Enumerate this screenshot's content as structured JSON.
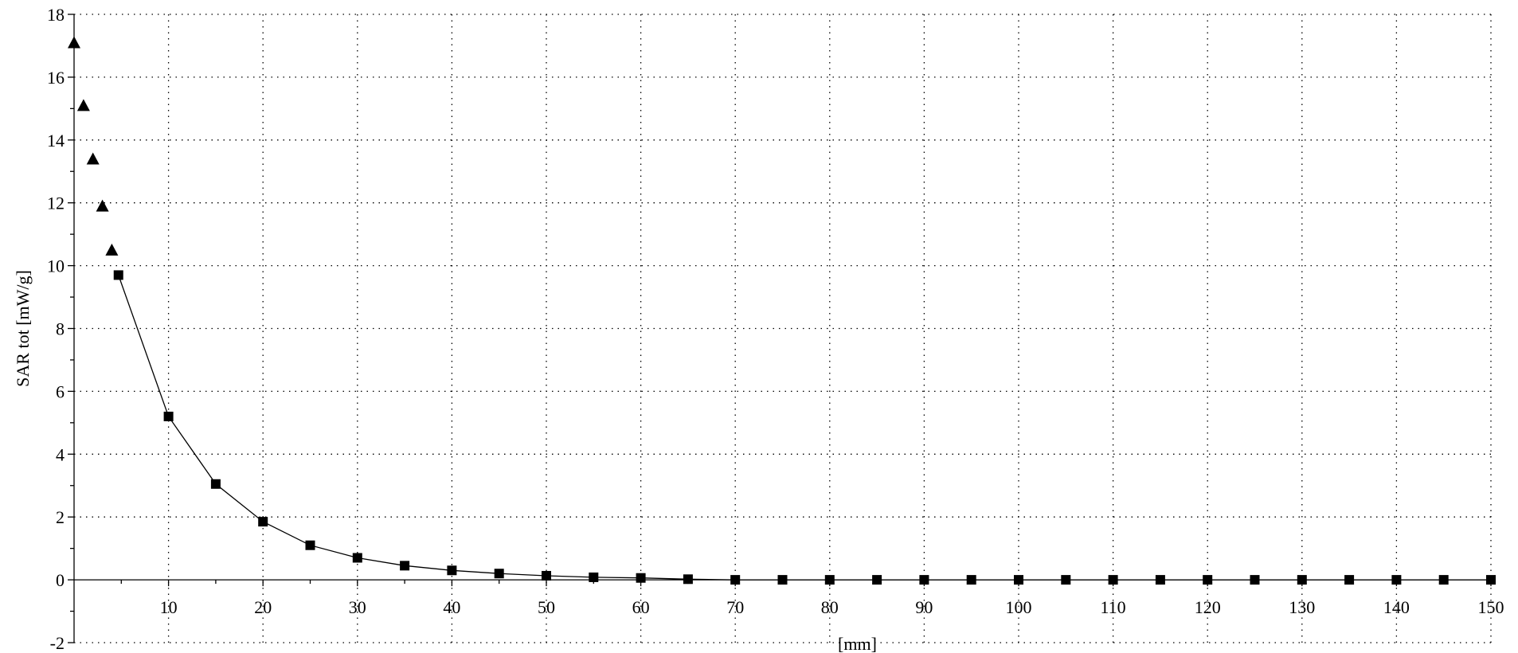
{
  "chart_data": {
    "type": "scatter",
    "xlabel": "[mm]",
    "ylabel": "SAR tot [mW/g]",
    "xlim": [
      0,
      150
    ],
    "ylim": [
      -2,
      18
    ],
    "x_ticks": [
      10,
      20,
      30,
      40,
      50,
      60,
      70,
      80,
      90,
      100,
      110,
      120,
      130,
      140,
      150
    ],
    "y_ticks": [
      -2,
      0,
      2,
      4,
      6,
      8,
      10,
      12,
      14,
      16,
      18
    ],
    "grid": true,
    "series": [
      {
        "marker": "triangle",
        "connected": false,
        "x": [
          0,
          1,
          2,
          3,
          4
        ],
        "y": [
          17.1,
          15.1,
          13.4,
          11.9,
          10.5
        ]
      },
      {
        "marker": "square",
        "connected": true,
        "x": [
          4.7,
          10,
          15,
          20,
          25,
          30,
          35,
          40,
          45,
          50,
          55,
          60,
          65,
          70,
          75,
          80,
          85,
          90,
          95,
          100,
          105,
          110,
          115,
          120,
          125,
          130,
          135,
          140,
          145,
          150
        ],
        "y": [
          9.7,
          5.2,
          3.05,
          1.85,
          1.1,
          0.7,
          0.45,
          0.3,
          0.2,
          0.13,
          0.08,
          0.06,
          0.02,
          0.0,
          0.0,
          0.0,
          0.0,
          0.0,
          0.0,
          0.0,
          0.0,
          0.0,
          0.0,
          0.0,
          0.0,
          0.0,
          0.0,
          0.0,
          0.0,
          0.0
        ]
      }
    ]
  }
}
